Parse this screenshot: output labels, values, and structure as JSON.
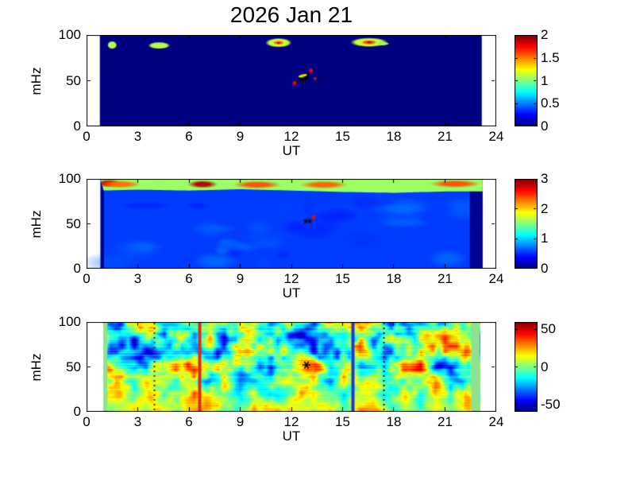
{
  "title": "2026 Jan 21",
  "figure": {
    "background": "#FFFFFF",
    "text_color": "#000000",
    "colormap": "jet"
  },
  "chart_data": [
    {
      "type": "heatmap",
      "name": "power-spectrogram-top",
      "xlabel": "UT",
      "ylabel": "mHz",
      "xlim": [
        0,
        24
      ],
      "ylim": [
        0,
        100
      ],
      "x_ticks": [
        0,
        3,
        6,
        9,
        12,
        15,
        18,
        21,
        24
      ],
      "y_ticks": [
        0,
        50,
        100
      ],
      "colorbar": {
        "min": 0,
        "max": 2,
        "ticks": [
          0,
          0.5,
          1,
          1.5,
          2
        ],
        "tick_labels": [
          "0",
          "0.5",
          "1",
          "1.5",
          "2"
        ]
      },
      "data_extent_ut": [
        0.78,
        23.15
      ],
      "background_value": 0,
      "blobs": [
        {
          "ut": 1.5,
          "mhz": 89,
          "rx": 0.22,
          "ry": 3.5,
          "value": 1.1
        },
        {
          "ut": 4.25,
          "mhz": 88.5,
          "rx": 0.5,
          "ry": 3.0,
          "value": 1.1
        },
        {
          "ut": 11.25,
          "mhz": 91.5,
          "rx": 0.6,
          "ry": 4.0,
          "value": 1.15,
          "core_value": 1.55
        },
        {
          "ut": 16.55,
          "mhz": 92,
          "rx": 0.85,
          "ry": 4.0,
          "value": 1.15,
          "core_value": 1.6
        },
        {
          "ut": 17.35,
          "mhz": 90.5,
          "rx": 0.3,
          "ry": 1.5,
          "value": 1.05
        }
      ],
      "markers": [
        {
          "ut": 12.72,
          "mhz": 53.5,
          "type": "blob",
          "color": "#000000",
          "rx": 0.33,
          "ry": 4.0,
          "rot": -0.55
        },
        {
          "ut": 12.66,
          "mhz": 55.5,
          "type": "blob",
          "color": "#D8E000",
          "rx": 0.27,
          "ry": 1.6,
          "rot": -0.25
        },
        {
          "ut": 13.15,
          "mhz": 61,
          "type": "dot",
          "color": "#E80000",
          "r": 2.5
        },
        {
          "ut": 12.18,
          "mhz": 47.5,
          "type": "dot",
          "color": "#E80000",
          "r": 2.5
        },
        {
          "ut": 13.38,
          "mhz": 52.5,
          "type": "dot",
          "color": "#E80000",
          "r": 2
        }
      ]
    },
    {
      "type": "heatmap",
      "name": "power-spectrogram-middle",
      "xlabel": "UT",
      "ylabel": "mHz",
      "xlim": [
        0,
        24
      ],
      "ylim": [
        0,
        100
      ],
      "x_ticks": [
        0,
        3,
        6,
        9,
        12,
        15,
        18,
        21,
        24
      ],
      "y_ticks": [
        0,
        50,
        100
      ],
      "colorbar": {
        "min": 0,
        "max": 3,
        "ticks": [
          0,
          1,
          2,
          3
        ],
        "tick_labels": [
          "0",
          "1",
          "2",
          "3"
        ]
      },
      "data_extent_ut": [
        0.82,
        23.2
      ],
      "background_value": 0.55,
      "edge_bands": [
        {
          "ut0": 0.82,
          "ut1": 1.02,
          "value": 0.05
        },
        {
          "ut0": 22.45,
          "ut1": 23.2,
          "value": 0.05
        }
      ],
      "top_band": {
        "value": 1.58,
        "edge_points": [
          [
            0.8,
            87
          ],
          [
            3,
            88
          ],
          [
            6,
            87
          ],
          [
            9,
            88.5
          ],
          [
            12,
            87
          ],
          [
            15,
            85.5
          ],
          [
            18,
            84.5
          ],
          [
            21,
            86
          ],
          [
            23.2,
            86
          ]
        ],
        "hot_spots": [
          {
            "ut": 1.3,
            "mhz": 95,
            "rx": 0.55,
            "value": 2.8
          },
          {
            "ut": 2.0,
            "mhz": 94,
            "rx": 0.8,
            "value": 2.3
          },
          {
            "ut": 6.8,
            "mhz": 94,
            "rx": 0.6,
            "value": 2.85
          },
          {
            "ut": 10.0,
            "mhz": 93.5,
            "rx": 0.95,
            "value": 2.4
          },
          {
            "ut": 13.9,
            "mhz": 93.5,
            "rx": 0.95,
            "value": 2.35
          },
          {
            "ut": 21.6,
            "mhz": 94.5,
            "rx": 1.0,
            "value": 2.4
          }
        ]
      },
      "texture": {
        "seed": 7,
        "patch_count": 48
      },
      "markers": [
        {
          "ut": 13.3,
          "mhz": 57.5,
          "type": "dot",
          "color": "#DD1100",
          "r": 2.5
        },
        {
          "ut": 12.82,
          "mhz": 53,
          "type": "asterisk",
          "color": "#000000",
          "r": 3
        },
        {
          "ut": 13.06,
          "mhz": 53,
          "type": "asterisk",
          "color": "#000000",
          "r": 3
        }
      ]
    },
    {
      "type": "heatmap",
      "name": "residual-spectrogram-bottom",
      "xlabel": "UT",
      "ylabel": "mHz",
      "xlim": [
        0,
        24
      ],
      "ylim": [
        0,
        100
      ],
      "x_ticks": [
        0,
        3,
        6,
        9,
        12,
        15,
        18,
        21,
        24
      ],
      "y_ticks": [
        0,
        50,
        100
      ],
      "colorbar": {
        "min": -60,
        "max": 60,
        "ticks": [
          -50,
          0,
          50
        ],
        "tick_labels": [
          "-50",
          "0",
          "50"
        ]
      },
      "data_extent_ut": [
        0.98,
        23.05
      ],
      "noise": {
        "seed": 1337,
        "coarse": [
          26,
          7
        ],
        "fine": [
          64,
          16
        ],
        "amp": 48
      },
      "edge_bands": [
        {
          "ut0": 0.98,
          "ut1": 1.22,
          "color": "#8FE08F"
        },
        {
          "ut0": 22.55,
          "ut1": 23.05,
          "color": "#8FE08F"
        }
      ],
      "vlines": [
        {
          "ut": 3.95,
          "style": "dotted",
          "color": "#8B1A00",
          "width": 2
        },
        {
          "ut": 6.62,
          "style": "solid",
          "color": "#D92A20",
          "width": 4
        },
        {
          "ut": 15.58,
          "style": "solid",
          "color": "#2233D8",
          "width": 4
        },
        {
          "ut": 17.38,
          "style": "dotted",
          "color": "#111111",
          "width": 2
        }
      ],
      "markers": [
        {
          "ut": 12.88,
          "mhz": 52,
          "type": "asterisk",
          "color": "#000000",
          "r": 5
        }
      ]
    }
  ]
}
